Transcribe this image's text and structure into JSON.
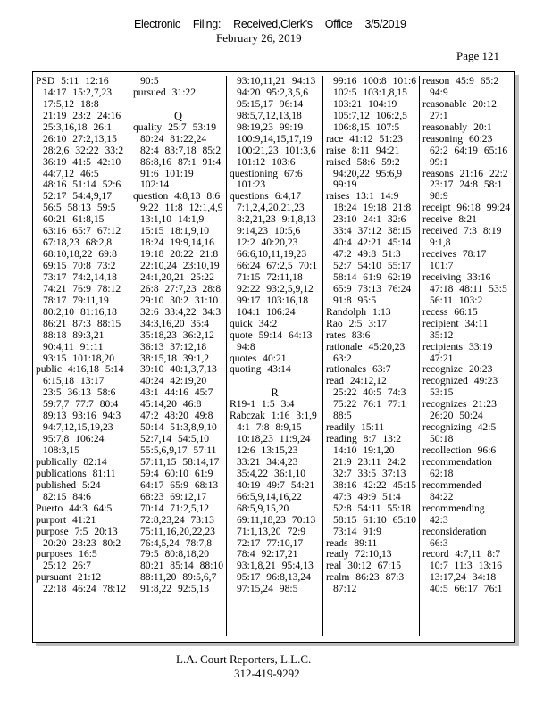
{
  "header": {
    "filing_parts": [
      "Electronic",
      "Filing:",
      "Received,Clerk's",
      "Office",
      "3/5/2019"
    ],
    "date": "February 26, 2019",
    "page_label": "Page 121"
  },
  "footer": {
    "company": "L.A. Court Reporters, L.L.C.",
    "phone": "312-419-9292"
  },
  "columns": [
    [
      [
        "h",
        "PSD  5:11   12:16"
      ],
      [
        "c",
        "14:17  15:2,7,23"
      ],
      [
        "c",
        "17:5,12   18:8"
      ],
      [
        "c",
        "21:19  23:2  24:16"
      ],
      [
        "c",
        "25:3,16,18    26:1"
      ],
      [
        "c",
        "26:10  27:2,13,15"
      ],
      [
        "c",
        "28:2,6  32:22   33:2"
      ],
      [
        "c",
        "36:19  41:5  42:10"
      ],
      [
        "c",
        "44:7,12   46:5"
      ],
      [
        "c",
        "48:16  51:14  52:6"
      ],
      [
        "c",
        "52:17  54:4,9,17"
      ],
      [
        "c",
        "56:5  58:13  59:5"
      ],
      [
        "c",
        "60:21  61:8,15"
      ],
      [
        "c",
        "63:16  65:7  67:12"
      ],
      [
        "c",
        "67:18,23    68:2,8"
      ],
      [
        "c",
        "68:10,18,22     69:8"
      ],
      [
        "c",
        "69:15  70:8  73:2"
      ],
      [
        "c",
        "73:17  74:2,14,18"
      ],
      [
        "c",
        "74:21  76:9  78:12"
      ],
      [
        "c",
        "78:17  79:11,19"
      ],
      [
        "c",
        "80:2,10   81:16,18"
      ],
      [
        "c",
        "86:21  87:3  88:15"
      ],
      [
        "c",
        "88:18  89:3,21"
      ],
      [
        "c",
        "90:4,11   91:11"
      ],
      [
        "c",
        "93:15  101:18,20"
      ],
      [
        "h",
        "public  4:16,18    5:14"
      ],
      [
        "c",
        "6:15,18  13:17"
      ],
      [
        "c",
        "23:5  36:13  58:6"
      ],
      [
        "c",
        "59:7,7  77:7  80:4"
      ],
      [
        "c",
        "89:13  93:16  94:3"
      ],
      [
        "c",
        "94:7,12,15,19,23"
      ],
      [
        "c",
        "95:7,8  106:24"
      ],
      [
        "c",
        "108:3,15"
      ],
      [
        "h",
        "publically   82:14"
      ],
      [
        "h",
        "publications    81:11"
      ],
      [
        "h",
        "published   5:24"
      ],
      [
        "c",
        "82:15  84:6"
      ],
      [
        "h",
        "Puerto   44:3  64:5"
      ],
      [
        "h",
        "purport    41:21"
      ],
      [
        "h",
        "purpose   7:5  20:13"
      ],
      [
        "c",
        "20:20  28:23  80:2"
      ],
      [
        "h",
        "purposes   16:5"
      ],
      [
        "c",
        "25:12  26:7"
      ],
      [
        "h",
        "pursuant    21:12"
      ],
      [
        "c",
        "22:18  46:24  78:12"
      ]
    ],
    [
      [
        "c",
        "90:5"
      ],
      [
        "h",
        "pursued    31:22"
      ],
      [
        "b",
        ""
      ],
      [
        "L",
        "Q"
      ],
      [
        "h",
        "quality  25:7   53:19"
      ],
      [
        "c",
        "80:24  81:22,24"
      ],
      [
        "c",
        "82:4  83:7,18   85:2"
      ],
      [
        "c",
        "86:8,16   87:1  91:4"
      ],
      [
        "c",
        "91:6  101:19"
      ],
      [
        "c",
        "102:14"
      ],
      [
        "h",
        "question   4:8,13    8:6"
      ],
      [
        "c",
        "9:22  11:8  12:1,4,9"
      ],
      [
        "c",
        "13:1,10   14:1,9"
      ],
      [
        "c",
        "15:15  18:1,9,10"
      ],
      [
        "c",
        "18:24  19:9,14,16"
      ],
      [
        "c",
        "19:18  20:22  21:8"
      ],
      [
        "c",
        "22:10,24    23:10,19"
      ],
      [
        "c",
        "24:1,20,21     25:22"
      ],
      [
        "c",
        "26:8  27:7,23    28:8"
      ],
      [
        "c",
        "29:10  30:2  31:10"
      ],
      [
        "c",
        "32:6  33:4,22   34:3"
      ],
      [
        "c",
        "34:3,16,20    35:4"
      ],
      [
        "c",
        "35:18,23    36:2,12"
      ],
      [
        "c",
        "36:13  37:12,18"
      ],
      [
        "c",
        "38:15,18   39:1,2"
      ],
      [
        "c",
        "39:10  40:1,3,7,13"
      ],
      [
        "c",
        "40:24  42:19,20"
      ],
      [
        "c",
        "43:1  44:16  45:7"
      ],
      [
        "c",
        "45:14,20   46:8"
      ],
      [
        "c",
        "47:2  48:20   49:8"
      ],
      [
        "c",
        "50:14  51:3,8,9,10"
      ],
      [
        "c",
        "52:7,14   54:5,10"
      ],
      [
        "c",
        "55:5,6,9,17    57:11"
      ],
      [
        "c",
        "57:11,15   58:14,17"
      ],
      [
        "c",
        "59:4  60:10  61:9"
      ],
      [
        "c",
        "64:17  65:9  68:13"
      ],
      [
        "c",
        "68:23  69:12,17"
      ],
      [
        "c",
        "70:14  71:2,5,12"
      ],
      [
        "c",
        "72:8,23,24     73:13"
      ],
      [
        "c",
        "75:11,16,20,22,23"
      ],
      [
        "c",
        "76:4,5,24    78:7,8"
      ],
      [
        "c",
        "79:5  80:8,18,20"
      ],
      [
        "c",
        "80:21  85:14  88:10"
      ],
      [
        "c",
        "88:11,20   89:5,6,7"
      ],
      [
        "c",
        "91:8,22   92:5,13"
      ]
    ],
    [
      [
        "c",
        "93:10,11,21     94:13"
      ],
      [
        "c",
        "94:20  95:2,3,5,6"
      ],
      [
        "c",
        "95:15,17   96:14"
      ],
      [
        "c",
        "98:5,7,12,13,18"
      ],
      [
        "c",
        "98:19,23    99:19"
      ],
      [
        "c",
        "100:9,14,15,17,19"
      ],
      [
        "c",
        "100:21,23     101:3,6"
      ],
      [
        "c",
        "101:12  103:6"
      ],
      [
        "h",
        "questioning     67:6"
      ],
      [
        "c",
        "101:23"
      ],
      [
        "h",
        "questions   6:4,17"
      ],
      [
        "c",
        "7:1,2,4,20,21,23"
      ],
      [
        "c",
        "8:2,21,23     9:1,8,13"
      ],
      [
        "c",
        "9:14,23   10:5,6"
      ],
      [
        "c",
        "12:2  40:20,23"
      ],
      [
        "c",
        "66:6,10,11,19,23"
      ],
      [
        "c",
        "66:24  67:2,5   70:1"
      ],
      [
        "c",
        "71:15  72:11,18"
      ],
      [
        "c",
        "92:22  93:2,5,9,12"
      ],
      [
        "c",
        "99:17  103:16,18"
      ],
      [
        "c",
        "104:1  106:24"
      ],
      [
        "h",
        "quick  34:2"
      ],
      [
        "h",
        "quote  59:14   64:13"
      ],
      [
        "c",
        "94:8"
      ],
      [
        "h",
        "quotes   40:21"
      ],
      [
        "h",
        "quoting    43:14"
      ],
      [
        "b",
        ""
      ],
      [
        "L",
        "R"
      ],
      [
        "h",
        "R19-1  1:5   3:4"
      ],
      [
        "h",
        "Rabczak     1:16   3:1,9"
      ],
      [
        "c",
        "4:1  7:8  8:9,15"
      ],
      [
        "c",
        "10:18,23     11:9,24"
      ],
      [
        "c",
        "12:6  13:15,23"
      ],
      [
        "c",
        "33:21  34:4,23"
      ],
      [
        "c",
        "35:4,22   36:1,10"
      ],
      [
        "c",
        "40:19  49:7  54:21"
      ],
      [
        "c",
        "66:5,9,14,16,22"
      ],
      [
        "c",
        "68:5,9,15,20"
      ],
      [
        "c",
        "69:11,18,23      70:13"
      ],
      [
        "c",
        "71:1,13,20     72:9"
      ],
      [
        "c",
        "72:17  77:10,17"
      ],
      [
        "c",
        "78:4  92:17,21"
      ],
      [
        "c",
        "93:1,8,21     95:4,13"
      ],
      [
        "c",
        "95:17  96:8,13,24"
      ],
      [
        "c",
        "97:15,24    98:5"
      ]
    ],
    [
      [
        "c",
        "99:16  100:8   101:6"
      ],
      [
        "c",
        "102:5  103:1,8,15"
      ],
      [
        "c",
        "103:21   104:19"
      ],
      [
        "c",
        "105:7,12     106:2,5"
      ],
      [
        "c",
        "106:8,15    107:5"
      ],
      [
        "h",
        "race  41:12   51:23"
      ],
      [
        "h",
        "raise  8:11   94:21"
      ],
      [
        "h",
        "raised  58:6   59:2"
      ],
      [
        "c",
        "94:20,22    95:6,9"
      ],
      [
        "c",
        "99:19"
      ],
      [
        "h",
        "raises  13:1   14:9"
      ],
      [
        "c",
        "18:24  19:18  21:8"
      ],
      [
        "c",
        "23:10  24:1  32:6"
      ],
      [
        "c",
        "33:4  37:12  38:15"
      ],
      [
        "c",
        "40:4  42:21  45:14"
      ],
      [
        "c",
        "47:2  49:8  51:3"
      ],
      [
        "c",
        "52:7  54:10  55:17"
      ],
      [
        "c",
        "58:14  61:9  62:19"
      ],
      [
        "c",
        "65:9  73:13  76:24"
      ],
      [
        "c",
        "91:8  95:5"
      ],
      [
        "h",
        "Randolph     1:13"
      ],
      [
        "h",
        "Rao  2:5   3:17"
      ],
      [
        "h",
        "rates  83:6"
      ],
      [
        "h",
        "rationale     45:20,23"
      ],
      [
        "c",
        "63:2"
      ],
      [
        "h",
        "rationales     63:7"
      ],
      [
        "h",
        "read  24:12,12"
      ],
      [
        "c",
        "25:22  40:5  74:3"
      ],
      [
        "c",
        "75:22  76:1  77:1"
      ],
      [
        "c",
        "88:5"
      ],
      [
        "h",
        "readily   15:11"
      ],
      [
        "h",
        "reading    8:7   13:2"
      ],
      [
        "c",
        "14:10  19:1,20"
      ],
      [
        "c",
        "21:9  23:11  24:2"
      ],
      [
        "c",
        "32:7  33:5  37:13"
      ],
      [
        "c",
        "38:16  42:22  45:15"
      ],
      [
        "c",
        "47:3  49:9  51:4"
      ],
      [
        "c",
        "52:8  54:11  55:18"
      ],
      [
        "c",
        "58:15  61:10  65:10"
      ],
      [
        "c",
        "73:14  91:9"
      ],
      [
        "h",
        "reads  89:11"
      ],
      [
        "h",
        "ready   72:10,13"
      ],
      [
        "h",
        "real  30:12   67:15"
      ],
      [
        "h",
        "realm   86:23   87:3"
      ],
      [
        "c",
        "87:12"
      ]
    ],
    [
      [
        "h",
        "reason   45:9   65:2"
      ],
      [
        "c",
        "94:9"
      ],
      [
        "h",
        "reasonable       20:12"
      ],
      [
        "c",
        "27:1"
      ],
      [
        "h",
        "reasonably      20:1"
      ],
      [
        "h",
        "reasoning     60:23"
      ],
      [
        "c",
        "62:2  64:19  65:16"
      ],
      [
        "c",
        "99:1"
      ],
      [
        "h",
        "reasons    21:16    22:2"
      ],
      [
        "c",
        "23:17  24:8  58:1"
      ],
      [
        "c",
        "98:9"
      ],
      [
        "h",
        "receipt   96:18   99:24"
      ],
      [
        "h",
        "receive   8:21"
      ],
      [
        "h",
        "received    7:3   8:19"
      ],
      [
        "c",
        "9:1,8"
      ],
      [
        "h",
        "receives    78:17"
      ],
      [
        "c",
        "101:7"
      ],
      [
        "h",
        "receiving     33:16"
      ],
      [
        "c",
        "47:18  48:11  53:5"
      ],
      [
        "c",
        "56:11  103:2"
      ],
      [
        "h",
        "recess  66:15"
      ],
      [
        "h",
        "recipient     34:11"
      ],
      [
        "c",
        "35:12"
      ],
      [
        "h",
        "recipients     33:19"
      ],
      [
        "c",
        "47:21"
      ],
      [
        "h",
        "recognize     20:23"
      ],
      [
        "h",
        "recognized      49:23"
      ],
      [
        "c",
        "53:15"
      ],
      [
        "h",
        "recognizes      21:23"
      ],
      [
        "c",
        "26:20   50:24"
      ],
      [
        "h",
        "recognizing      42:5"
      ],
      [
        "c",
        "50:18"
      ],
      [
        "h",
        "recollection     96:6"
      ],
      [
        "h",
        "recommendation"
      ],
      [
        "c",
        "62:18"
      ],
      [
        "h",
        "recommended"
      ],
      [
        "c",
        "84:22"
      ],
      [
        "h",
        "recommending"
      ],
      [
        "c",
        "42:3"
      ],
      [
        "h",
        "reconsideration"
      ],
      [
        "c",
        "66:3"
      ],
      [
        "h",
        "record    4:7,11     8:7"
      ],
      [
        "c",
        "10:7  11:3  13:16"
      ],
      [
        "c",
        "13:17,24     34:18"
      ],
      [
        "c",
        "40:5  66:17  76:1"
      ]
    ]
  ]
}
